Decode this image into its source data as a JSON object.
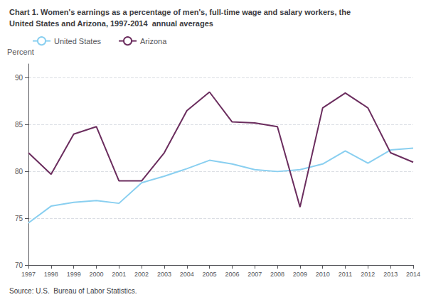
{
  "chart_data": {
    "type": "line",
    "title": "Chart 1. Women's earnings as a percentage of men's, full-time wage and salary workers, the",
    "subtitle": "United States and Arizona, 1997-2014  annual averages",
    "ylabel": "Percent",
    "source": "Source: U.S.  Bureau of Labor Statistics.",
    "categories": [
      "1997",
      "1998",
      "1999",
      "2000",
      "2001",
      "2002",
      "2003",
      "2004",
      "2005",
      "2006",
      "2007",
      "2008",
      "2009",
      "2010",
      "2011",
      "2012",
      "2013",
      "2014"
    ],
    "series": [
      {
        "name": "United States",
        "color": "#89CFF0",
        "values": [
          74.5,
          76.3,
          76.7,
          76.9,
          76.6,
          78.8,
          79.5,
          80.3,
          81.2,
          80.8,
          80.2,
          80.0,
          80.2,
          80.8,
          82.2,
          80.9,
          82.3,
          82.5
        ]
      },
      {
        "name": "Arizona",
        "color": "#6B2D5E",
        "values": [
          82.0,
          79.7,
          84.0,
          84.8,
          79.0,
          79.0,
          82.0,
          86.5,
          88.5,
          85.3,
          85.2,
          84.8,
          76.2,
          86.8,
          88.4,
          86.8,
          82.0,
          81.0
        ]
      }
    ],
    "ylim": [
      70,
      91.5
    ],
    "yticks": [
      70,
      75,
      80,
      85,
      90
    ],
    "grid": true,
    "legend": "upper left"
  }
}
